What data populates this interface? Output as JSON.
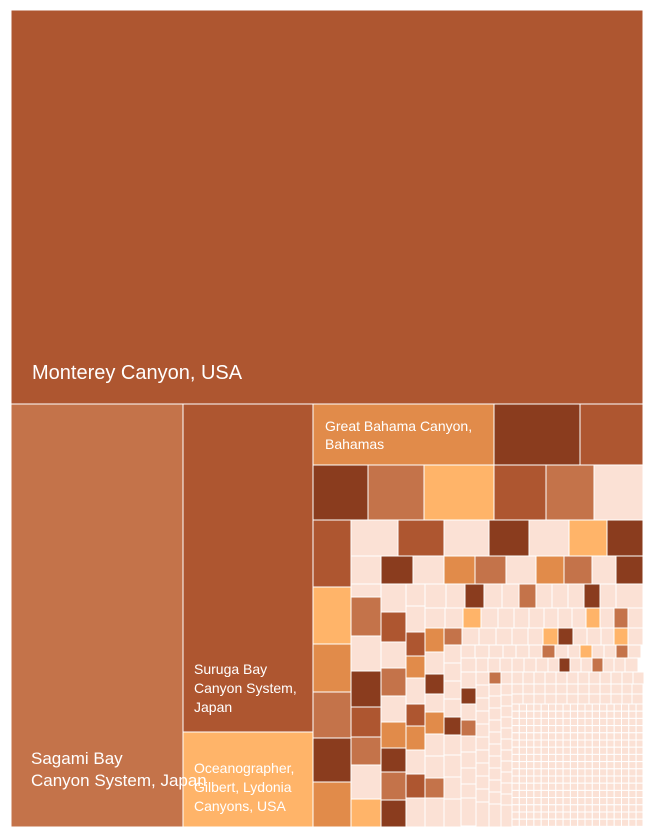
{
  "chart_data": {
    "type": "treemap",
    "palette": [
      "#AE5630",
      "#C4734A",
      "#E18B4A",
      "#FFB469",
      "#8A3C1E",
      "#F8D2C2",
      "#FBE1D5"
    ],
    "labeled_tiles": [
      {
        "name": "Monterey Canyon, USA",
        "rank": 1
      },
      {
        "name": "Sagami Bay Canyon System, Japan",
        "rank": 2
      },
      {
        "name": "Suruga Bay Canyon System, Japan",
        "rank": 3
      },
      {
        "name": "Oceanographer, Gilbert, Lydonia Canyons, USA",
        "rank": 4
      },
      {
        "name": "Great Bahama Canyon, Bahamas",
        "rank": 5
      }
    ],
    "unlabeled_tiles_note": ""
  }
}
